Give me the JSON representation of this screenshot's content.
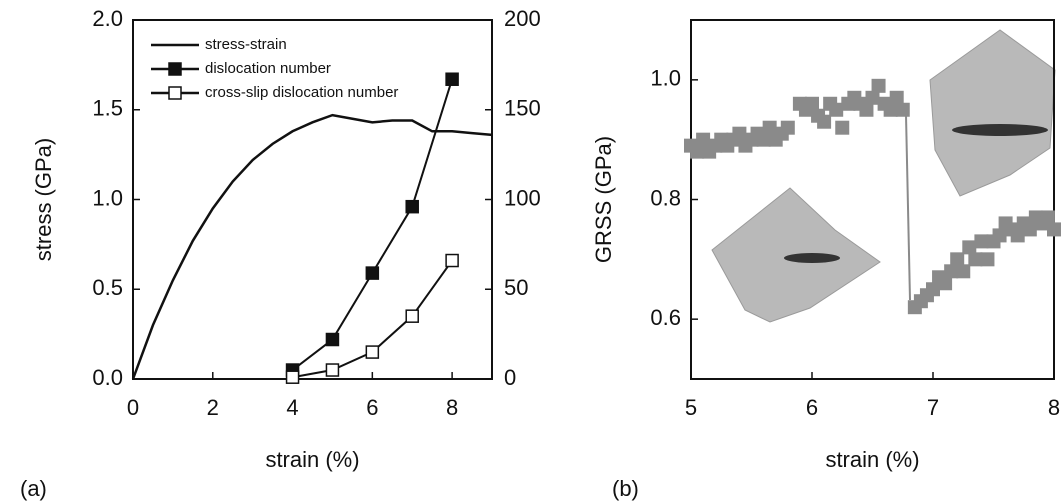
{
  "chart_data": [
    {
      "type": "line",
      "label": "(a)",
      "xlabel": "strain (%)",
      "ylabel": "stress (GPa)",
      "xlim": [
        0,
        9
      ],
      "xticks": [
        0,
        2,
        4,
        6,
        8
      ],
      "ylim": [
        0,
        2
      ],
      "yticks": [
        {
          "value": 0,
          "label": "0.0"
        },
        0.5,
        {
          "value": 1,
          "label": "1.0"
        },
        1.5,
        {
          "value": 2,
          "label": "2.0"
        }
      ],
      "y2lim": [
        0,
        200
      ],
      "y2ticks": [
        0,
        50,
        100,
        150,
        200
      ],
      "legend": "upper left",
      "series": [
        {
          "name": "stress-strain",
          "color": "#111111",
          "marker": "none",
          "axis": "y",
          "x": [
            0,
            0.5,
            1,
            1.5,
            2,
            2.5,
            3,
            3.5,
            4,
            4.5,
            5,
            5.5,
            6,
            6.5,
            7,
            7.5,
            8,
            8.5,
            9
          ],
          "values": [
            0,
            0.3,
            0.55,
            0.77,
            0.95,
            1.1,
            1.22,
            1.31,
            1.38,
            1.43,
            1.47,
            1.45,
            1.43,
            1.44,
            1.44,
            1.38,
            1.38,
            1.37,
            1.36
          ]
        },
        {
          "name": "dislocation number",
          "color": "#111111",
          "marker": "square-filled",
          "axis": "y2",
          "x": [
            4,
            5,
            6,
            7,
            8
          ],
          "values": [
            5,
            22,
            59,
            96,
            167
          ]
        },
        {
          "name": "cross-slip dislocation number",
          "color": "#111111",
          "marker": "square-open",
          "axis": "y2",
          "x": [
            4,
            5,
            6,
            7,
            8
          ],
          "values": [
            1,
            5,
            15,
            35,
            66
          ]
        }
      ]
    },
    {
      "type": "scatter",
      "label": "(b)",
      "xlabel": "strain (%)",
      "ylabel": "GRSS (GPa)",
      "xlim": [
        5,
        8
      ],
      "xticks": [
        5,
        6,
        7,
        8
      ],
      "ylim": [
        0.5,
        1.1
      ],
      "yticks": [
        0.6,
        0.8,
        {
          "value": 1,
          "label": "1.0"
        }
      ],
      "color": "#8a8a8a",
      "x": [
        5.0,
        5.05,
        5.1,
        5.15,
        5.2,
        5.25,
        5.3,
        5.35,
        5.4,
        5.45,
        5.5,
        5.55,
        5.6,
        5.65,
        5.7,
        5.75,
        5.8,
        5.9,
        5.95,
        6.0,
        6.05,
        6.1,
        6.15,
        6.2,
        6.25,
        6.3,
        6.35,
        6.4,
        6.45,
        6.5,
        6.55,
        6.6,
        6.65,
        6.7,
        6.75,
        6.85,
        6.9,
        6.95,
        7.0,
        7.05,
        7.1,
        7.15,
        7.2,
        7.25,
        7.3,
        7.35,
        7.4,
        7.45,
        7.5,
        7.55,
        7.6,
        7.65,
        7.7,
        7.75,
        7.8,
        7.85,
        7.9,
        7.95,
        8.0
      ],
      "values": [
        0.89,
        0.88,
        0.9,
        0.88,
        0.89,
        0.9,
        0.89,
        0.9,
        0.91,
        0.89,
        0.9,
        0.91,
        0.9,
        0.92,
        0.9,
        0.91,
        0.92,
        0.96,
        0.95,
        0.96,
        0.94,
        0.93,
        0.96,
        0.95,
        0.92,
        0.96,
        0.97,
        0.96,
        0.95,
        0.97,
        0.99,
        0.96,
        0.95,
        0.97,
        0.95,
        0.62,
        0.63,
        0.64,
        0.65,
        0.67,
        0.66,
        0.68,
        0.7,
        0.68,
        0.72,
        0.7,
        0.73,
        0.7,
        0.73,
        0.74,
        0.76,
        0.75,
        0.74,
        0.76,
        0.75,
        0.77,
        0.76,
        0.77,
        0.75
      ]
    }
  ]
}
